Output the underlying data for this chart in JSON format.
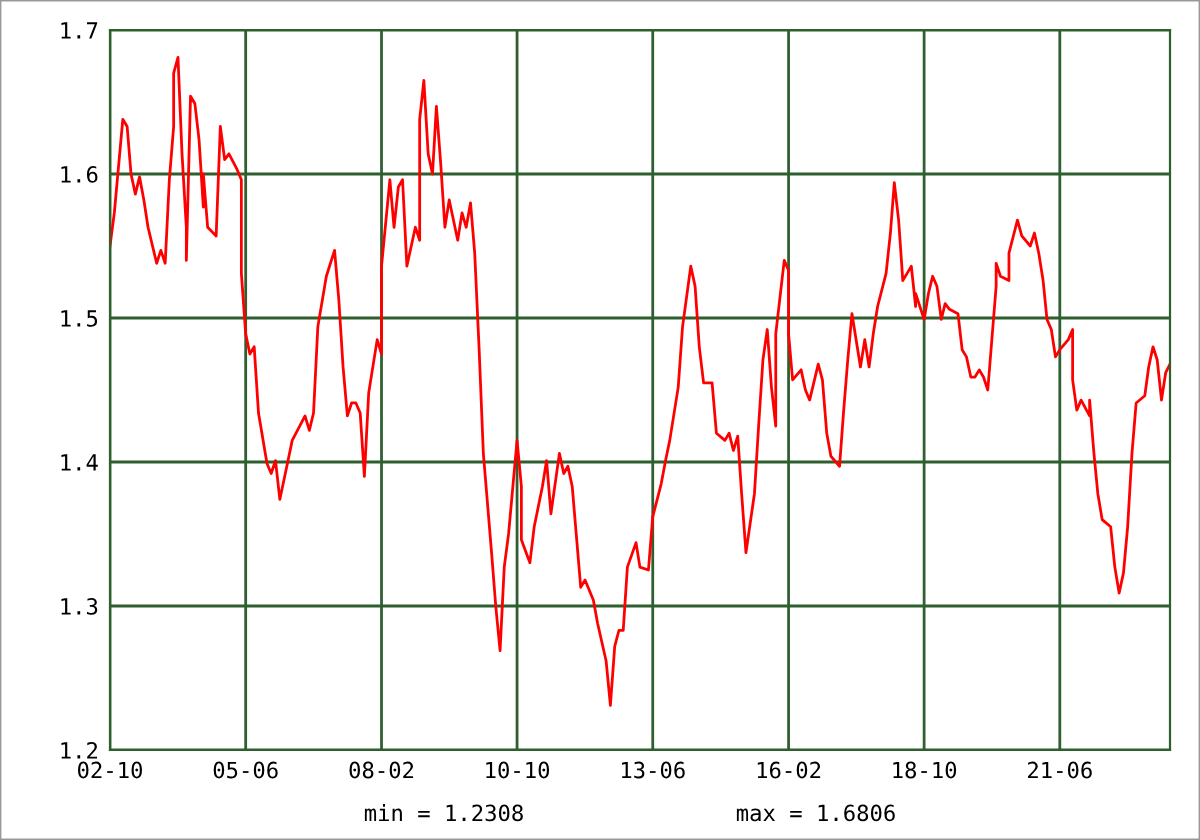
{
  "chart_data": {
    "type": "line",
    "x": [
      "2002-10",
      "2002-11",
      "2003-01",
      "2003-02",
      "2003-03",
      "2003-04",
      "2003-05",
      "2003-06",
      "2003-07",
      "2003-09",
      "2003-10",
      "2003-11",
      "2003-12",
      "2004-01",
      "2004-01",
      "2004-02",
      "2004-03",
      "2004-04",
      "2004-04",
      "2004-05",
      "2004-06",
      "2004-07",
      "2004-08",
      "2004-08",
      "2004-09",
      "2004-11",
      "2004-12",
      "2005-01",
      "2005-02",
      "2005-04",
      "2005-05",
      "2005-05",
      "2005-06",
      "2005-07",
      "2005-08",
      "2005-09",
      "2005-11",
      "2005-12",
      "2006-01",
      "2006-02",
      "2006-04",
      "2006-05",
      "2006-08",
      "2006-09",
      "2006-10",
      "2006-11",
      "2007-01",
      "2007-03",
      "2007-04",
      "2007-05",
      "2007-06",
      "2007-07",
      "2007-08",
      "2007-09",
      "2007-10",
      "2007-11",
      "2008-01",
      "2008-02",
      "2008-02",
      "2008-04",
      "2008-05",
      "2008-06",
      "2008-07",
      "2008-08",
      "2008-10",
      "2008-11",
      "2008-11",
      "2008-12",
      "2009-01",
      "2009-02",
      "2009-03",
      "2009-04",
      "2009-05",
      "2009-06",
      "2009-08",
      "2009-09",
      "2009-10",
      "2009-11",
      "2009-12",
      "2010-01",
      "2010-02",
      "2010-04",
      "2010-05",
      "2010-06",
      "2010-07",
      "2010-08",
      "2010-09",
      "2010-10",
      "2010-11",
      "2010-11",
      "2011-01",
      "2011-02",
      "2011-04",
      "2011-05",
      "2011-06",
      "2011-08",
      "2011-09",
      "2011-10",
      "2011-11",
      "2012-01",
      "2012-02",
      "2012-04",
      "2012-05",
      "2012-07",
      "2012-08",
      "2012-09",
      "2012-10",
      "2012-11",
      "2012-12",
      "2013-02",
      "2013-03",
      "2013-05",
      "2013-06",
      "2013-08",
      "2013-09",
      "2013-10",
      "2013-12",
      "2014-01",
      "2014-03",
      "2014-04",
      "2014-05",
      "2014-06",
      "2014-08",
      "2014-09",
      "2014-11",
      "2014-12",
      "2015-01",
      "2015-02",
      "2015-03",
      "2015-04",
      "2015-06",
      "2015-07",
      "2015-08",
      "2015-09",
      "2015-10",
      "2015-11",
      "2015-11",
      "2016-01",
      "2016-02",
      "2016-02",
      "2016-03",
      "2016-05",
      "2016-06",
      "2016-07",
      "2016-09",
      "2016-10",
      "2016-11",
      "2016-12",
      "2017-02",
      "2017-03",
      "2017-04",
      "2017-05",
      "2017-07",
      "2017-08",
      "2017-09",
      "2017-10",
      "2017-11",
      "2018-01",
      "2018-02",
      "2018-03",
      "2018-04",
      "2018-05",
      "2018-06",
      "2018-07",
      "2018-08",
      "2018-08",
      "2018-10",
      "2018-11",
      "2018-12",
      "2019-01",
      "2019-02",
      "2019-03",
      "2019-04",
      "2019-06",
      "2019-07",
      "2019-08",
      "2019-09",
      "2019-10",
      "2019-11",
      "2019-12",
      "2020-01",
      "2020-03",
      "2020-03",
      "2020-04",
      "2020-06",
      "2020-06",
      "2020-08",
      "2020-09",
      "2020-11",
      "2020-12",
      "2021-01",
      "2021-02",
      "2021-03",
      "2021-04",
      "2021-05",
      "2021-06",
      "2021-08",
      "2021-09",
      "2021-09",
      "2021-10",
      "2021-11",
      "2022-01",
      "2022-01",
      "2022-02",
      "2022-03",
      "2022-04",
      "2022-06",
      "2022-07",
      "2022-08",
      "2022-09",
      "2022-10",
      "2022-11",
      "2022-12",
      "2023-02",
      "2023-03",
      "2023-04",
      "2023-05",
      "2023-06",
      "2023-07",
      "2023-08"
    ],
    "series": [
      {
        "color": "#ff0000",
        "values": [
          1.55,
          1.573,
          1.638,
          1.633,
          1.6,
          1.586,
          1.598,
          1.582,
          1.563,
          1.538,
          1.547,
          1.538,
          1.596,
          1.633,
          1.67,
          1.681,
          1.614,
          1.563,
          1.54,
          1.654,
          1.649,
          1.624,
          1.577,
          1.6,
          1.563,
          1.557,
          1.633,
          1.61,
          1.614,
          1.603,
          1.596,
          1.531,
          1.489,
          1.475,
          1.48,
          1.434,
          1.399,
          1.392,
          1.401,
          1.374,
          1.401,
          1.415,
          1.432,
          1.422,
          1.434,
          1.494,
          1.529,
          1.547,
          1.512,
          1.466,
          1.432,
          1.441,
          1.441,
          1.434,
          1.39,
          1.448,
          1.485,
          1.475,
          1.536,
          1.596,
          1.563,
          1.591,
          1.596,
          1.536,
          1.563,
          1.554,
          1.638,
          1.665,
          1.614,
          1.6,
          1.647,
          1.607,
          1.563,
          1.582,
          1.554,
          1.573,
          1.563,
          1.58,
          1.545,
          1.48,
          1.406,
          1.337,
          1.3,
          1.269,
          1.327,
          1.35,
          1.383,
          1.415,
          1.383,
          1.346,
          1.33,
          1.355,
          1.383,
          1.401,
          1.364,
          1.406,
          1.392,
          1.397,
          1.383,
          1.313,
          1.318,
          1.304,
          1.288,
          1.262,
          1.231,
          1.272,
          1.283,
          1.283,
          1.327,
          1.344,
          1.327,
          1.325,
          1.362,
          1.385,
          1.401,
          1.415,
          1.452,
          1.494,
          1.536,
          1.522,
          1.48,
          1.455,
          1.455,
          1.42,
          1.415,
          1.42,
          1.408,
          1.418,
          1.378,
          1.337,
          1.378,
          1.425,
          1.471,
          1.492,
          1.452,
          1.425,
          1.489,
          1.54,
          1.533,
          1.489,
          1.457,
          1.464,
          1.45,
          1.443,
          1.468,
          1.457,
          1.42,
          1.404,
          1.397,
          1.434,
          1.471,
          1.503,
          1.466,
          1.485,
          1.466,
          1.489,
          1.508,
          1.531,
          1.559,
          1.594,
          1.568,
          1.526,
          1.531,
          1.536,
          1.508,
          1.517,
          1.499,
          1.517,
          1.529,
          1.522,
          1.499,
          1.51,
          1.506,
          1.503,
          1.478,
          1.473,
          1.459,
          1.459,
          1.464,
          1.459,
          1.45,
          1.522,
          1.538,
          1.529,
          1.526,
          1.545,
          1.568,
          1.557,
          1.55,
          1.559,
          1.545,
          1.526,
          1.499,
          1.492,
          1.473,
          1.478,
          1.485,
          1.492,
          1.457,
          1.436,
          1.443,
          1.432,
          1.443,
          1.406,
          1.378,
          1.36,
          1.355,
          1.327,
          1.309,
          1.323,
          1.355,
          1.406,
          1.441,
          1.446,
          1.466,
          1.48,
          1.471,
          1.443,
          1.462,
          1.468
        ]
      }
    ],
    "xlim": [
      "2002-10",
      "2023-08"
    ],
    "xticks": [
      {
        "value": "2002-10",
        "label": "02-10"
      },
      {
        "value": "2005-06",
        "label": "05-06"
      },
      {
        "value": "2008-02",
        "label": "08-02"
      },
      {
        "value": "2010-10",
        "label": "10-10"
      },
      {
        "value": "2013-06",
        "label": "13-06"
      },
      {
        "value": "2016-02",
        "label": "16-02"
      },
      {
        "value": "2018-10",
        "label": "18-10"
      },
      {
        "value": "2021-06",
        "label": "21-06"
      }
    ],
    "ylim": [
      1.2,
      1.7
    ],
    "yticks": [
      {
        "value": 1.2,
        "label": "1.2"
      },
      {
        "value": 1.3,
        "label": "1.3"
      },
      {
        "value": 1.4,
        "label": "1.4"
      },
      {
        "value": 1.5,
        "label": "1.5"
      },
      {
        "value": 1.6,
        "label": "1.6"
      },
      {
        "value": 1.7,
        "label": "1.7"
      }
    ],
    "grid": true,
    "legend": false,
    "marker": "none",
    "line_style": "solid",
    "annotations": [
      "min = 1.2308",
      "max = 1.6806"
    ]
  }
}
